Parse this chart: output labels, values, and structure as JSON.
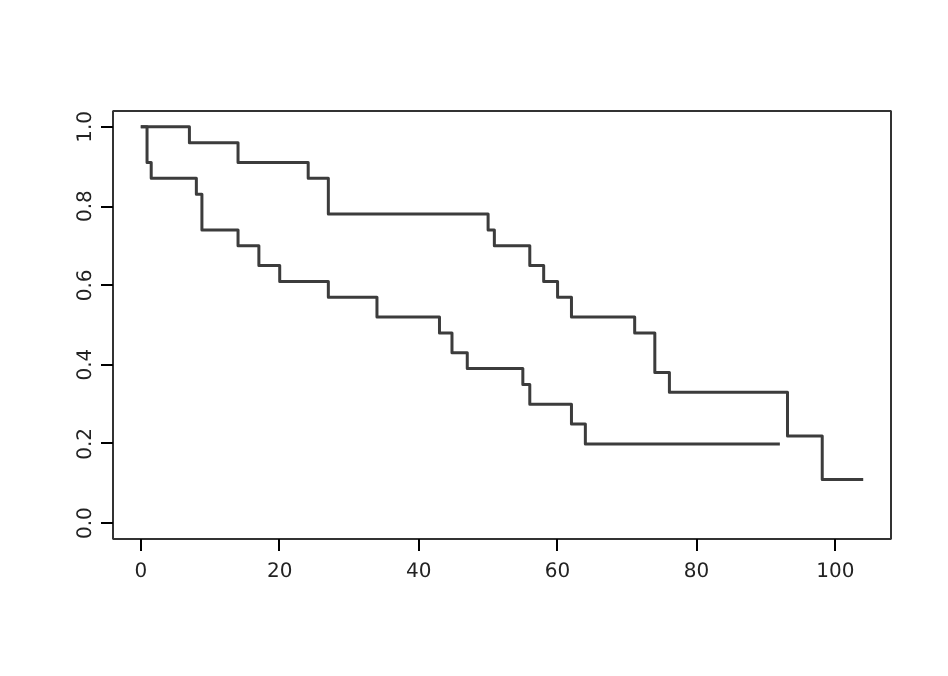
{
  "chart_data": {
    "type": "step",
    "xlim": [
      -4,
      108
    ],
    "ylim": [
      -0.04,
      1.04
    ],
    "xticks": [
      0,
      20,
      40,
      60,
      80,
      100
    ],
    "yticks": [
      {
        "value": 0,
        "label": "0.0"
      },
      {
        "value": 0.2,
        "label": "0.2"
      },
      {
        "value": 0.4,
        "label": "0.4"
      },
      {
        "value": 0.6,
        "label": "0.6"
      },
      {
        "value": 0.8,
        "label": "0.8"
      },
      {
        "value": 1,
        "label": "1.0"
      }
    ],
    "grid": false,
    "line_style": "solid",
    "series": [
      {
        "color": "#3c3c3c",
        "x": [
          0,
          7,
          14,
          24.1,
          27,
          50,
          50.9,
          56,
          58,
          60,
          62,
          71.1,
          74,
          76.1,
          93.1,
          98.1,
          104
        ],
        "values": [
          1,
          0.96,
          0.91,
          0.87,
          0.78,
          0.74,
          0.7,
          0.65,
          0.61,
          0.57,
          0.52,
          0.48,
          0.38,
          0.33,
          0.22,
          0.11,
          0.11
        ]
      },
      {
        "color": "#3c3c3c",
        "x": [
          0,
          0.9,
          1.5,
          8,
          8.8,
          14,
          17,
          20,
          27,
          34,
          43,
          44.8,
          47,
          55,
          56,
          62,
          64,
          92
        ],
        "values": [
          1,
          0.91,
          0.87,
          0.83,
          0.74,
          0.7,
          0.65,
          0.61,
          0.57,
          0.52,
          0.48,
          0.43,
          0.39,
          0.35,
          0.3,
          0.25,
          0.2,
          0.2
        ]
      }
    ]
  }
}
